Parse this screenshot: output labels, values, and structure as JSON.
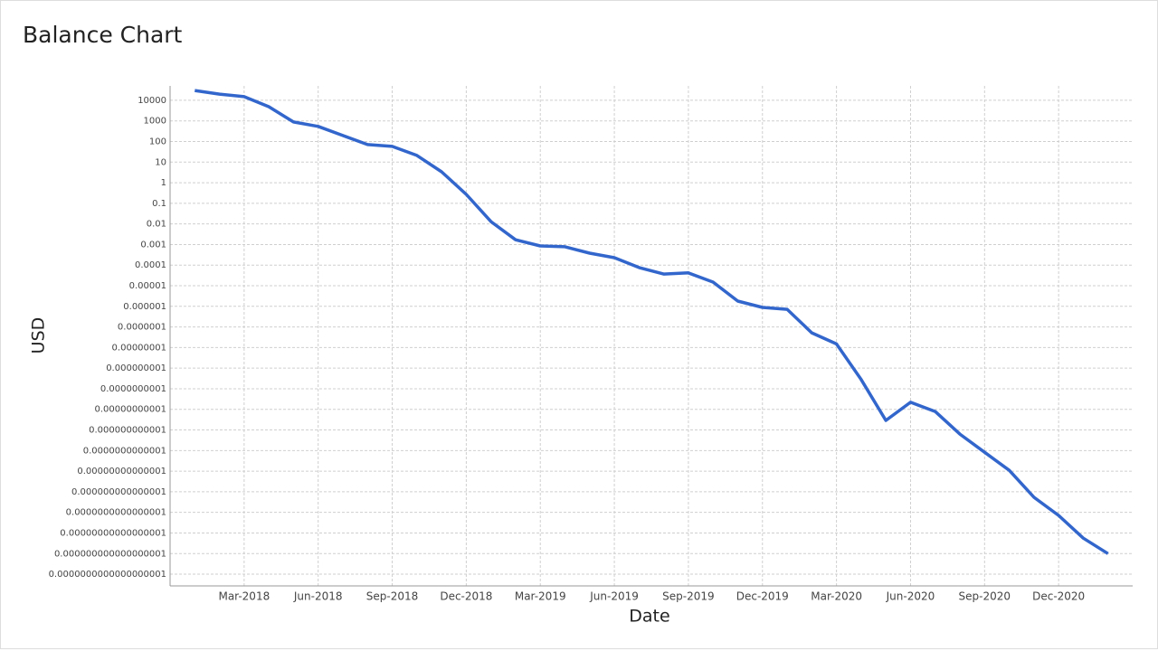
{
  "chart_data": {
    "type": "line",
    "title": "Balance Chart",
    "x_label": "Date",
    "y_label": "USD",
    "log_scale": true,
    "grid": true,
    "x": [
      "2018-01",
      "2018-02",
      "2018-03",
      "2018-04",
      "2018-05",
      "2018-06",
      "2018-07",
      "2018-08",
      "2018-09",
      "2018-10",
      "2018-11",
      "2018-12",
      "2019-01",
      "2019-02",
      "2019-03",
      "2019-04",
      "2019-05",
      "2019-06",
      "2019-07",
      "2019-08",
      "2019-09",
      "2019-10",
      "2019-11",
      "2019-12",
      "2020-01",
      "2020-02",
      "2020-03",
      "2020-04",
      "2020-05",
      "2020-06",
      "2020-07",
      "2020-08",
      "2020-09",
      "2020-10",
      "2020-11",
      "2020-12",
      "2021-01",
      "2021-02"
    ],
    "series": [
      {
        "name": "USD",
        "color": "#3366cc",
        "values": [
          30000,
          20000,
          15000,
          4900,
          890,
          540,
          195,
          71,
          58,
          21,
          3.4,
          0.27,
          0.013,
          0.0017,
          0.00085,
          0.00078,
          0.00038,
          0.00023,
          7.6e-05,
          3.7e-05,
          4.2e-05,
          1.5e-05,
          1.8e-06,
          8.9e-07,
          7.2e-07,
          5.2e-08,
          1.5e-08,
          2.8e-10,
          2.9e-12,
          2.2e-11,
          7.9e-12,
          6.3e-13,
          8.3e-14,
          1.1e-14,
          5.4e-16,
          7.1e-17,
          5.6e-18,
          1e-18
        ]
      }
    ],
    "xlim": [
      "2017-12",
      "2021-03"
    ],
    "xticks": [
      {
        "value": "2018-03",
        "label": "Mar-2018"
      },
      {
        "value": "2018-06",
        "label": "Jun-2018"
      },
      {
        "value": "2018-09",
        "label": "Sep-2018"
      },
      {
        "value": "2018-12",
        "label": "Dec-2018"
      },
      {
        "value": "2019-03",
        "label": "Mar-2019"
      },
      {
        "value": "2019-06",
        "label": "Jun-2019"
      },
      {
        "value": "2019-09",
        "label": "Sep-2019"
      },
      {
        "value": "2019-12",
        "label": "Dec-2019"
      },
      {
        "value": "2020-03",
        "label": "Mar-2020"
      },
      {
        "value": "2020-06",
        "label": "Jun-2020"
      },
      {
        "value": "2020-09",
        "label": "Sep-2020"
      },
      {
        "value": "2020-12",
        "label": "Dec-2020"
      }
    ],
    "ylim": [
      2.7e-20,
      50000
    ],
    "yticks": [
      10000,
      1000,
      100,
      10,
      1,
      0.1,
      0.01,
      0.001,
      0.0001,
      1e-05,
      1e-06,
      {
        "value": 1e-07,
        "label": "0.0000001"
      },
      {
        "value": 1e-08,
        "label": "0.00000001"
      },
      {
        "value": 1e-09,
        "label": "0.000000001"
      },
      {
        "value": 1e-10,
        "label": "0.0000000001"
      },
      {
        "value": 1e-11,
        "label": "0.00000000001"
      },
      {
        "value": 1e-12,
        "label": "0.000000000001"
      },
      {
        "value": 1e-13,
        "label": "0.0000000000001"
      },
      {
        "value": 1e-14,
        "label": "0.00000000000001"
      },
      {
        "value": 1e-15,
        "label": "0.000000000000001"
      },
      {
        "value": 1e-16,
        "label": "0.0000000000000001"
      },
      {
        "value": 1e-17,
        "label": "0.00000000000000001"
      },
      {
        "value": 1e-18,
        "label": "0.000000000000000001"
      },
      {
        "value": 1e-19,
        "label": "0.0000000000000000001"
      }
    ]
  }
}
